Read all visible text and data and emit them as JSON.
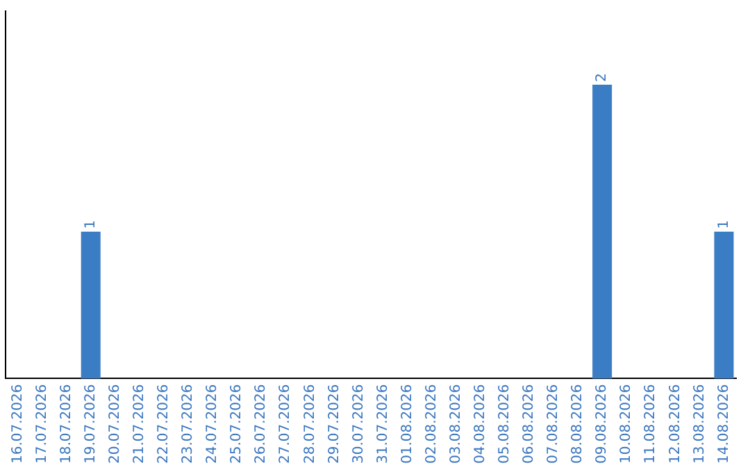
{
  "chart_data": {
    "type": "bar",
    "categories": [
      "16.07.2026",
      "17.07.2026",
      "18.07.2026",
      "19.07.2026",
      "20.07.2026",
      "21.07.2026",
      "22.07.2026",
      "23.07.2026",
      "24.07.2026",
      "25.07.2026",
      "26.07.2026",
      "27.07.2026",
      "28.07.2026",
      "29.07.2026",
      "30.07.2026",
      "31.07.2026",
      "01.08.2026",
      "02.08.2026",
      "03.08.2026",
      "04.08.2026",
      "05.08.2026",
      "06.08.2026",
      "07.08.2026",
      "08.08.2026",
      "09.08.2026",
      "10.08.2026",
      "11.08.2026",
      "12.08.2026",
      "13.08.2026",
      "14.08.2026"
    ],
    "values": [
      0,
      0,
      0,
      1,
      0,
      0,
      0,
      0,
      0,
      0,
      0,
      0,
      0,
      0,
      0,
      0,
      0,
      0,
      0,
      0,
      0,
      0,
      0,
      0,
      2,
      0,
      0,
      0,
      0,
      1
    ],
    "value_labels": [
      null,
      null,
      null,
      "1",
      null,
      null,
      null,
      null,
      null,
      null,
      null,
      null,
      null,
      null,
      null,
      null,
      null,
      null,
      null,
      null,
      null,
      null,
      null,
      null,
      "2",
      null,
      null,
      null,
      null,
      "1"
    ],
    "color": "#3b7dc4",
    "grid": false,
    "legend": false
  }
}
